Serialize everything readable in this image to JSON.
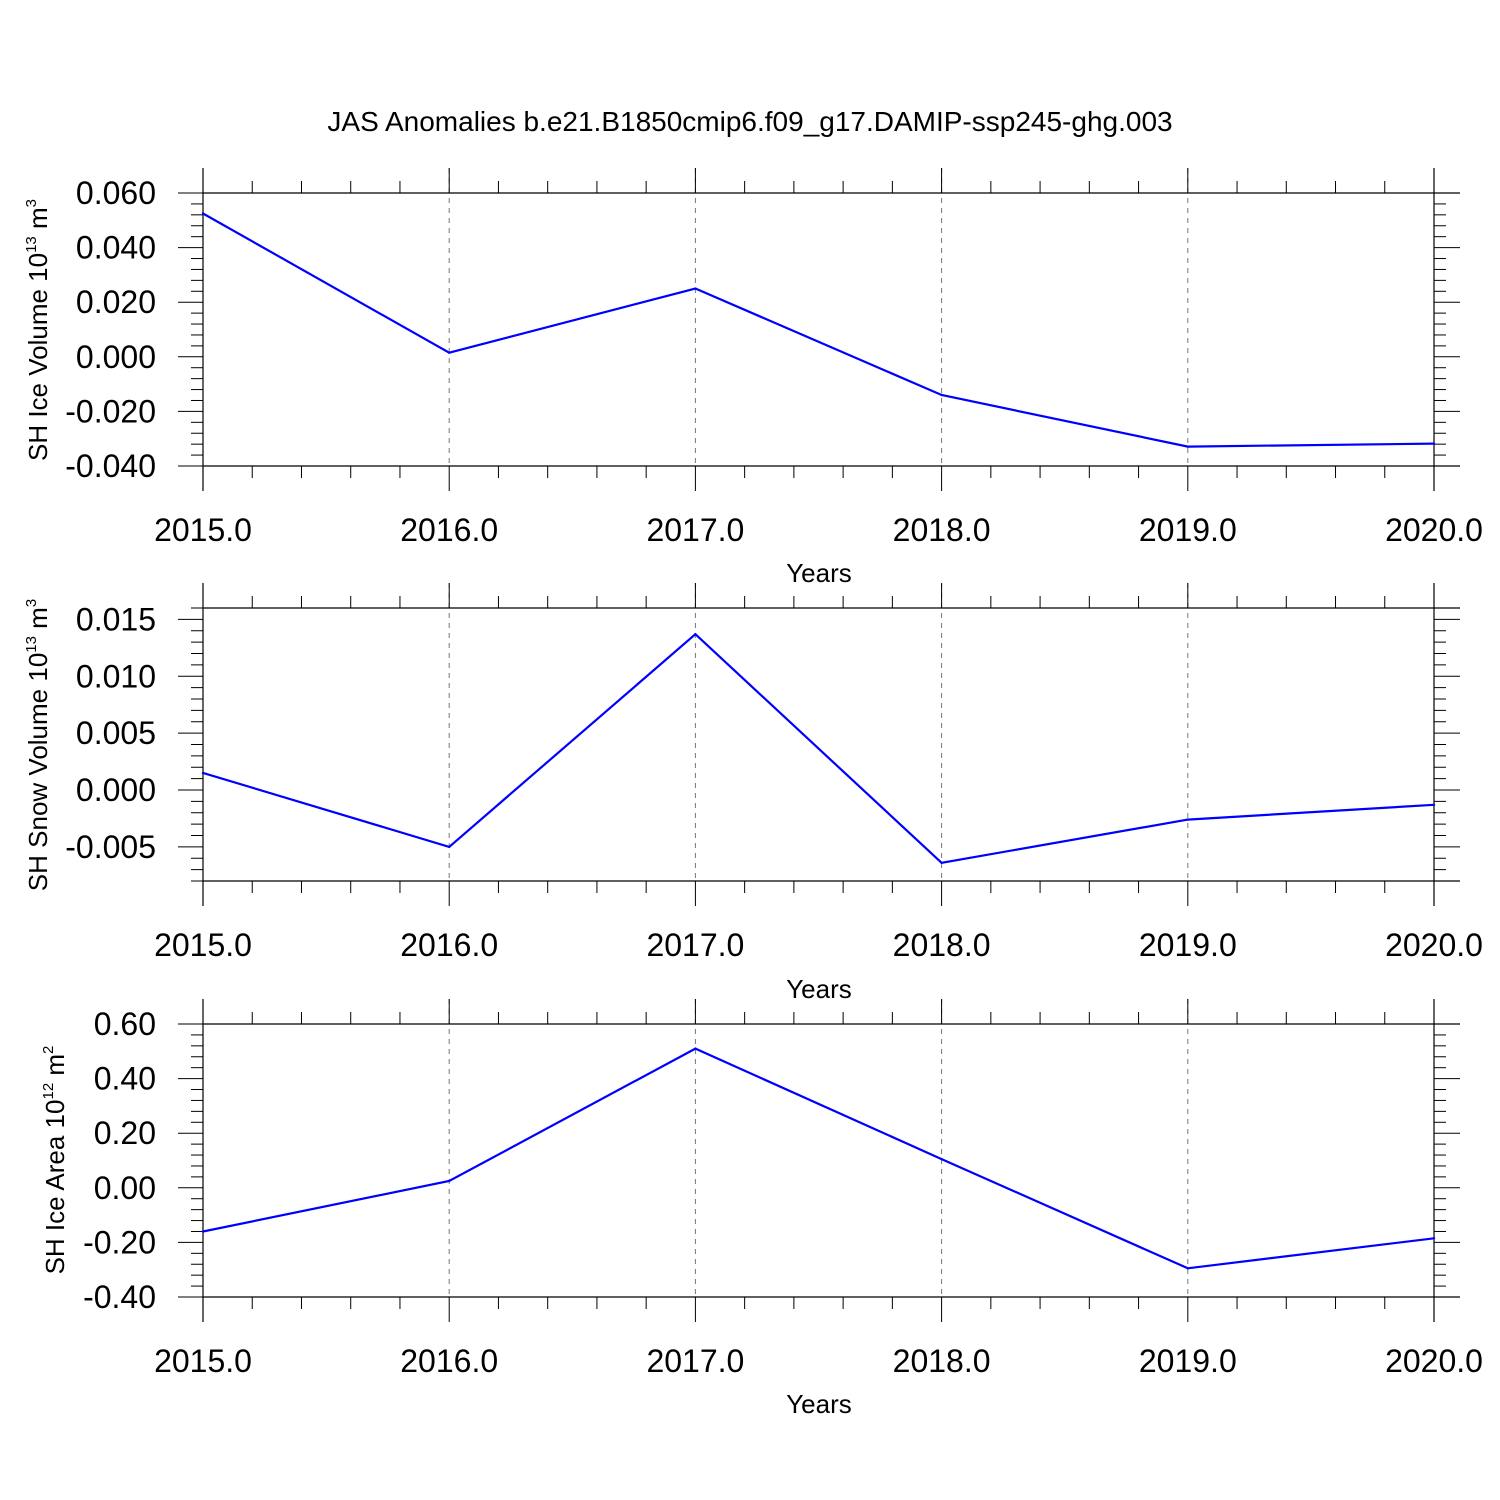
{
  "title": "JAS Anomalies b.e21.B1850cmip6.f09_g17.DAMIP-ssp245-ghg.003",
  "colors": {
    "line": "#0000ff",
    "grid": "#777777",
    "axis": "#000000"
  },
  "chart_data": [
    {
      "type": "line",
      "xlabel": "Years",
      "ylabel": {
        "text": "SH Ice Volume 10",
        "sup1": "13",
        "mid": " m",
        "sup2": "3"
      },
      "x": [
        2015,
        2016,
        2017,
        2018,
        2019,
        2020
      ],
      "values": [
        0.0525,
        0.0015,
        0.025,
        -0.014,
        -0.0329,
        -0.0318
      ],
      "xlim": [
        2015,
        2020
      ],
      "ylim": [
        -0.04,
        0.06
      ],
      "xticks": [
        2015,
        2016,
        2017,
        2018,
        2019,
        2020
      ],
      "xtick_labels": [
        "2015.0",
        "2016.0",
        "2017.0",
        "2018.0",
        "2019.0",
        "2020.0"
      ],
      "yticks": [
        -0.04,
        -0.02,
        0.0,
        0.02,
        0.04,
        0.06
      ],
      "ytick_labels": [
        "-0.040",
        "-0.020",
        "0.000",
        "0.020",
        "0.040",
        "0.060"
      ],
      "vertical_grid": "dashed at major x ticks"
    },
    {
      "type": "line",
      "xlabel": "Years",
      "ylabel": {
        "text": "SH Snow Volume 10",
        "sup1": "13",
        "mid": " m",
        "sup2": "3"
      },
      "x": [
        2015,
        2016,
        2017,
        2018,
        2019,
        2020
      ],
      "values": [
        0.0015,
        -0.005,
        0.0137,
        -0.0064,
        -0.0026,
        -0.0013
      ],
      "xlim": [
        2015,
        2020
      ],
      "ylim": [
        -0.008,
        0.016
      ],
      "xticks": [
        2015,
        2016,
        2017,
        2018,
        2019,
        2020
      ],
      "xtick_labels": [
        "2015.0",
        "2016.0",
        "2017.0",
        "2018.0",
        "2019.0",
        "2020.0"
      ],
      "yticks": [
        -0.005,
        0.0,
        0.005,
        0.01,
        0.015
      ],
      "ytick_labels": [
        "-0.005",
        "0.000",
        "0.005",
        "0.010",
        "0.015"
      ],
      "vertical_grid": "dashed at major x ticks"
    },
    {
      "type": "line",
      "xlabel": "Years",
      "ylabel": {
        "text": "SH Ice Area 10",
        "sup1": "12",
        "mid": " m",
        "sup2": "2"
      },
      "x": [
        2015,
        2016,
        2017,
        2018,
        2019,
        2020
      ],
      "values": [
        -0.16,
        0.025,
        0.51,
        0.105,
        -0.295,
        -0.185
      ],
      "xlim": [
        2015,
        2020
      ],
      "ylim": [
        -0.4,
        0.6
      ],
      "xticks": [
        2015,
        2016,
        2017,
        2018,
        2019,
        2020
      ],
      "xtick_labels": [
        "2015.0",
        "2016.0",
        "2017.0",
        "2018.0",
        "2019.0",
        "2020.0"
      ],
      "yticks": [
        -0.4,
        -0.2,
        0.0,
        0.2,
        0.4,
        0.6
      ],
      "ytick_labels": [
        "-0.40",
        "-0.20",
        "0.00",
        "0.20",
        "0.40",
        "0.60"
      ],
      "vertical_grid": "dashed at major x ticks"
    }
  ]
}
